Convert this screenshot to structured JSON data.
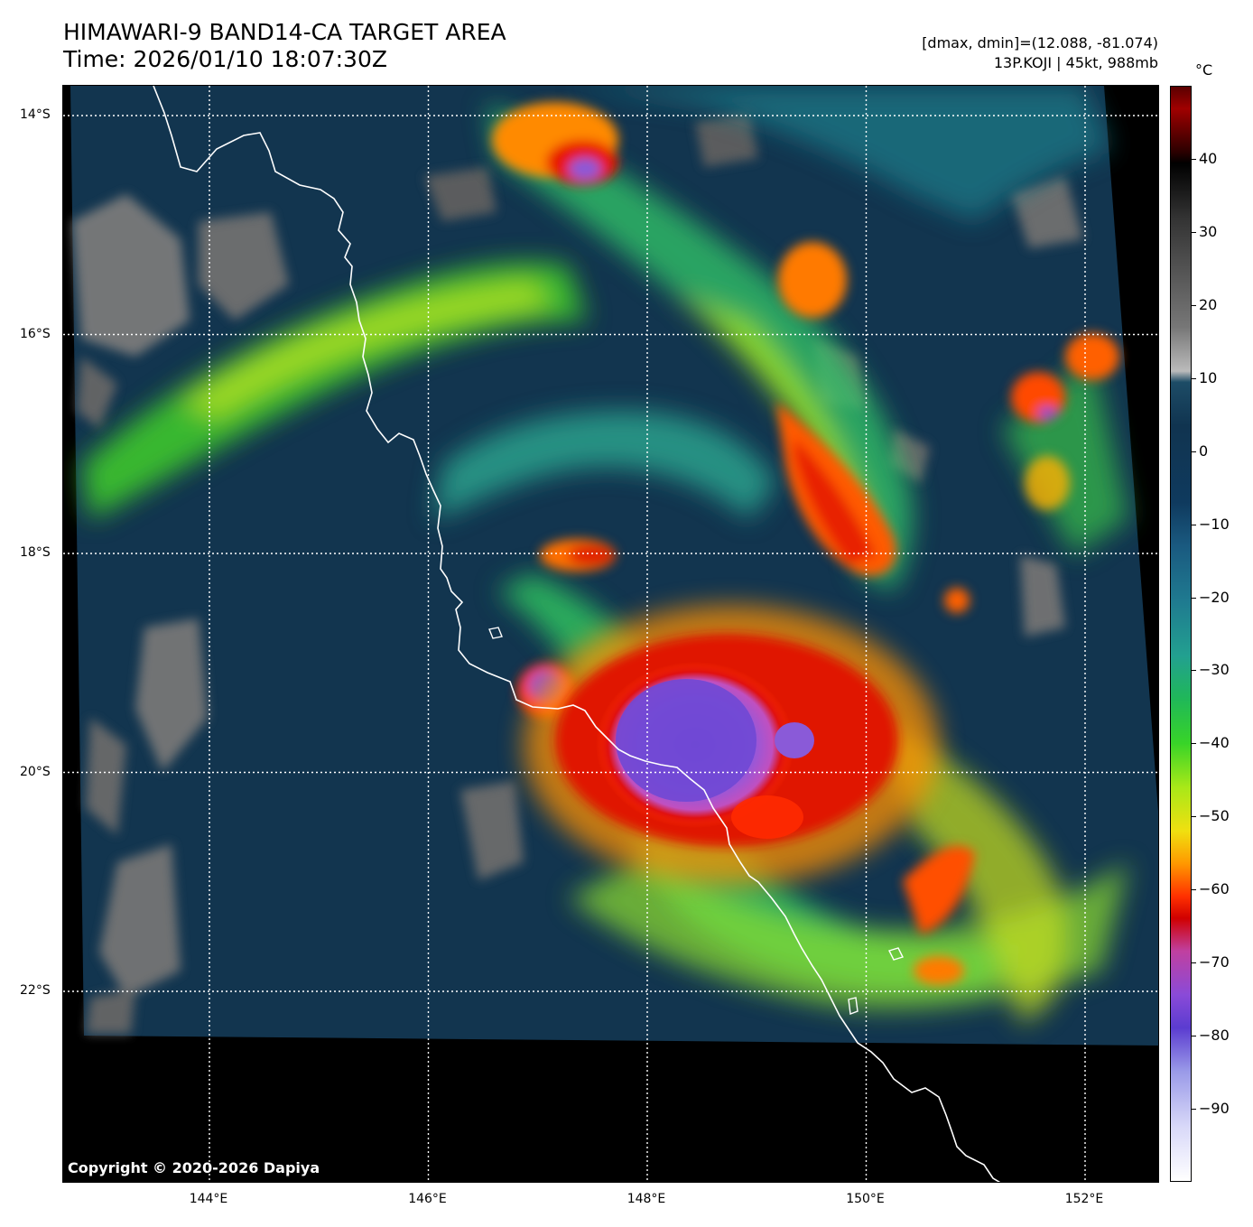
{
  "header": {
    "title_line1": "HIMAWARI-9 BAND14-CA TARGET AREA",
    "title_line2": "Time: 2026/01/10 18:07:30Z",
    "meta_line1": "[dmax, dmin]=(12.088, -81.074)",
    "meta_line2": "13P.KOJI | 45kt, 988mb"
  },
  "map": {
    "latitude_labels": [
      "14°S",
      "16°S",
      "18°S",
      "20°S",
      "22°S"
    ],
    "latitude_values": [
      -14,
      -16,
      -18,
      -20,
      -22
    ],
    "longitude_labels": [
      "144°E",
      "146°E",
      "148°E",
      "150°E",
      "152°E"
    ],
    "longitude_values": [
      144,
      146,
      148,
      150,
      152
    ],
    "copyright": "Copyright © 2020-2026 Dapiya",
    "coastline_color": "#ffffff",
    "gridline_color": "#ffffff"
  },
  "colorbar": {
    "unit": "°C",
    "tick_labels": [
      "40",
      "30",
      "20",
      "10",
      "0",
      "−10",
      "−20",
      "−30",
      "−40",
      "−50",
      "−60",
      "−70",
      "−80",
      "−90"
    ],
    "tick_values": [
      40,
      30,
      20,
      10,
      0,
      -10,
      -20,
      -30,
      -40,
      -50,
      -60,
      -70,
      -80,
      -90
    ],
    "range": [
      -100,
      50
    ]
  }
}
